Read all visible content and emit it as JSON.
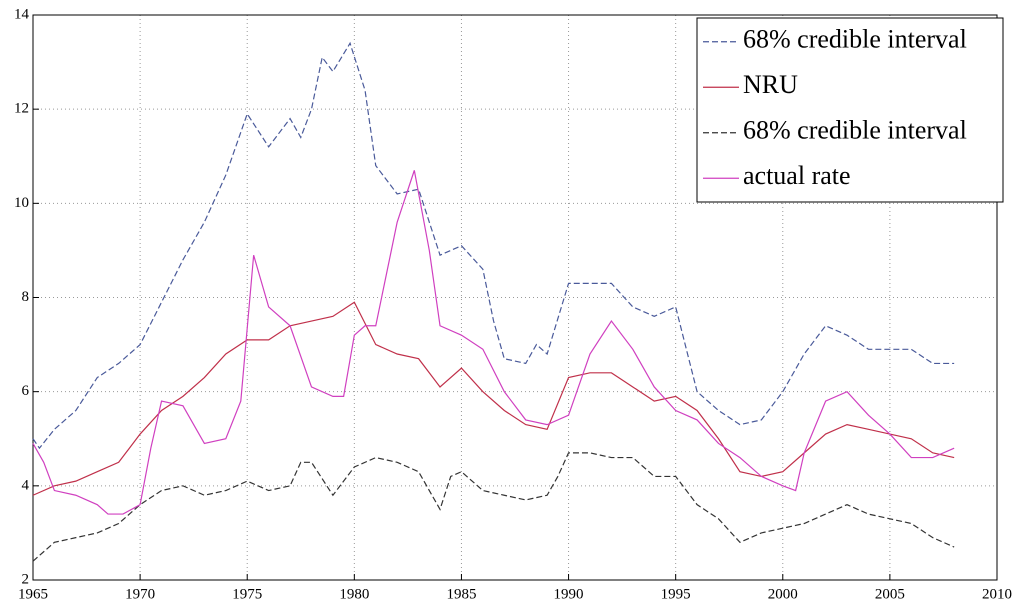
{
  "chart_data": {
    "type": "line",
    "xlim": [
      1965,
      2010
    ],
    "ylim": [
      2,
      14
    ],
    "xticks": [
      1965,
      1970,
      1975,
      1980,
      1985,
      1990,
      1995,
      2000,
      2005,
      2010
    ],
    "yticks": [
      2,
      4,
      6,
      8,
      10,
      12,
      14
    ],
    "grid": true,
    "legend": "upper right",
    "series": [
      {
        "name": "68% credible interval",
        "color": "#4a5a9a",
        "dash": true,
        "x": [
          1965,
          1965.3,
          1966,
          1967,
          1968,
          1969,
          1970,
          1971,
          1972,
          1973,
          1974,
          1975,
          1976,
          1977,
          1977.5,
          1978,
          1978.5,
          1979,
          1979.8,
          1980.5,
          1981,
          1982,
          1983,
          1984,
          1985,
          1986,
          1986.5,
          1987,
          1988,
          1988.5,
          1989,
          1990,
          1991,
          1992,
          1993,
          1994,
          1995,
          1996,
          1997,
          1998,
          1999,
          2000,
          2001,
          2002,
          2003,
          2004,
          2005,
          2006,
          2007,
          2008
        ],
        "values": [
          5.0,
          4.8,
          5.2,
          5.6,
          6.3,
          6.6,
          7.0,
          7.9,
          8.8,
          9.6,
          10.6,
          11.9,
          11.2,
          11.8,
          11.4,
          12.0,
          13.1,
          12.8,
          13.4,
          12.4,
          10.8,
          10.2,
          10.3,
          8.9,
          9.1,
          8.6,
          7.5,
          6.7,
          6.6,
          7.0,
          6.8,
          8.3,
          8.3,
          8.3,
          7.8,
          7.6,
          7.8,
          6.0,
          5.6,
          5.3,
          5.4,
          6.0,
          6.8,
          7.4,
          7.2,
          6.9,
          6.9,
          6.9,
          6.6,
          6.6
        ]
      },
      {
        "name": "NRU",
        "color": "#c0304a",
        "dash": false,
        "x": [
          1965,
          1966,
          1967,
          1968,
          1969,
          1970,
          1971,
          1972,
          1973,
          1974,
          1975,
          1976,
          1977,
          1978,
          1979,
          1980,
          1981,
          1982,
          1983,
          1984,
          1985,
          1986,
          1987,
          1988,
          1989,
          1990,
          1991,
          1992,
          1993,
          1994,
          1995,
          1996,
          1997,
          1998,
          1999,
          2000,
          2001,
          2002,
          2003,
          2004,
          2005,
          2006,
          2007,
          2008
        ],
        "values": [
          3.8,
          4.0,
          4.1,
          4.3,
          4.5,
          5.1,
          5.6,
          5.9,
          6.3,
          6.8,
          7.1,
          7.1,
          7.4,
          7.5,
          7.6,
          7.9,
          7.0,
          6.8,
          6.7,
          6.1,
          6.5,
          6.0,
          5.6,
          5.3,
          5.2,
          6.3,
          6.4,
          6.4,
          6.1,
          5.8,
          5.9,
          5.6,
          5.0,
          4.3,
          4.2,
          4.3,
          4.7,
          5.1,
          5.3,
          5.2,
          5.1,
          5.0,
          4.7,
          4.6
        ]
      },
      {
        "name": "68% credible interval",
        "color": "#333333",
        "dash": true,
        "x": [
          1965,
          1966,
          1967,
          1968,
          1969,
          1970,
          1971,
          1972,
          1973,
          1974,
          1975,
          1976,
          1977,
          1977.5,
          1978,
          1979,
          1979.5,
          1980,
          1981,
          1982,
          1983,
          1984,
          1984.5,
          1985,
          1986,
          1987,
          1988,
          1989,
          1989.5,
          1990,
          1991,
          1992,
          1993,
          1994,
          1995,
          1996,
          1997,
          1998,
          1999,
          2000,
          2001,
          2002,
          2003,
          2004,
          2005,
          2006,
          2007,
          2008
        ],
        "values": [
          2.4,
          2.8,
          2.9,
          3.0,
          3.2,
          3.6,
          3.9,
          4.0,
          3.8,
          3.9,
          4.1,
          3.9,
          4.0,
          4.5,
          4.5,
          3.8,
          4.1,
          4.4,
          4.6,
          4.5,
          4.3,
          3.5,
          4.2,
          4.3,
          3.9,
          3.8,
          3.7,
          3.8,
          4.2,
          4.7,
          4.7,
          4.6,
          4.6,
          4.2,
          4.2,
          3.6,
          3.3,
          2.8,
          3.0,
          3.1,
          3.2,
          3.4,
          3.6,
          3.4,
          3.3,
          3.2,
          2.9,
          2.7
        ]
      },
      {
        "name": "actual rate",
        "color": "#d040c0",
        "dash": false,
        "x": [
          1965,
          1965.5,
          1966,
          1967,
          1968,
          1968.5,
          1969.2,
          1970,
          1970.5,
          1971,
          1972,
          1973,
          1974,
          1974.7,
          1975.3,
          1976,
          1977,
          1978,
          1979,
          1979.5,
          1980,
          1980.5,
          1981,
          1982,
          1982.8,
          1983.5,
          1984,
          1985,
          1986,
          1987,
          1988,
          1989,
          1990,
          1991,
          1992,
          1993,
          1994,
          1995,
          1996,
          1997,
          1998,
          1999,
          2000,
          2000.6,
          2001,
          2002,
          2003,
          2004,
          2005,
          2006,
          2007,
          2008
        ],
        "values": [
          4.9,
          4.5,
          3.9,
          3.8,
          3.6,
          3.4,
          3.4,
          3.6,
          4.8,
          5.8,
          5.7,
          4.9,
          5.0,
          5.8,
          8.9,
          7.8,
          7.4,
          6.1,
          5.9,
          5.9,
          7.2,
          7.4,
          7.4,
          9.6,
          10.7,
          9.0,
          7.4,
          7.2,
          6.9,
          6.0,
          5.4,
          5.3,
          5.5,
          6.8,
          7.5,
          6.9,
          6.1,
          5.6,
          5.4,
          4.9,
          4.6,
          4.2,
          4.0,
          3.9,
          4.7,
          5.8,
          6.0,
          5.5,
          5.1,
          4.6,
          4.6,
          4.8
        ]
      }
    ]
  }
}
